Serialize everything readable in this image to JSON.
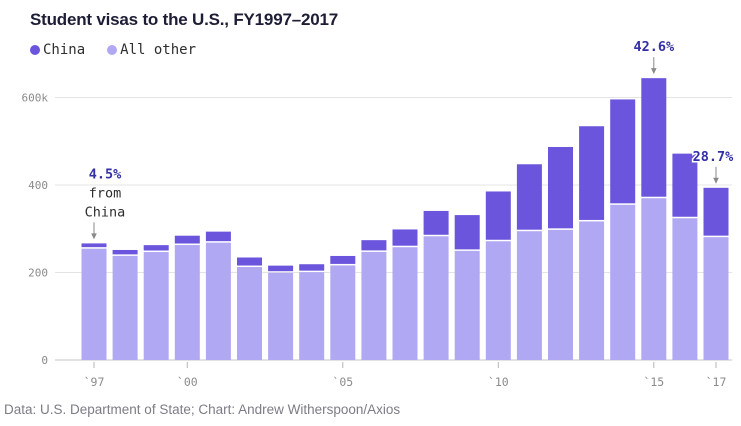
{
  "header": {
    "title": "Student visas to the U.S., FY1997–2017"
  },
  "legend": [
    {
      "label": "China",
      "color": "#6a55dc"
    },
    {
      "label": "All other",
      "color": "#b1a8f3"
    }
  ],
  "footer": {
    "source": "Data: U.S. Department of State; Chart: Andrew Witherspoon/Axios"
  },
  "chart_data": {
    "type": "bar",
    "stacked": true,
    "title": "Student visas to the U.S., FY1997–2017",
    "unit": "thousands of visas issued",
    "categories": [
      1997,
      1998,
      1999,
      2000,
      2001,
      2002,
      2003,
      2004,
      2005,
      2006,
      2007,
      2008,
      2009,
      2010,
      2011,
      2012,
      2013,
      2014,
      2015,
      2016,
      2017
    ],
    "series": [
      {
        "name": "China",
        "color": "#6a55dc",
        "values": [
          12,
          13.5,
          15.7,
          21.3,
          25.2,
          21.8,
          16.2,
          18.1,
          21.6,
          26.8,
          40.6,
          57.9,
          81.8,
          113.8,
          153,
          189.4,
          217.6,
          240.9,
          274.4,
          147.7,
          112.8
        ]
      },
      {
        "name": "All other",
        "color": "#b1a8f3",
        "values": [
          254.5,
          238,
          246.8,
          262.8,
          268.2,
          212.5,
          199.5,
          200.8,
          216.2,
          247.1,
          257.8,
          282.8,
          249.4,
          271.4,
          294.4,
          297.5,
          316.7,
          354.7,
          369.8,
          324,
          280.8
        ]
      }
    ],
    "y_axis": {
      "ticks": [
        0,
        200,
        400,
        600
      ],
      "tick_labels": [
        "0",
        "200",
        "400",
        "600k"
      ],
      "max": 690,
      "grid": true
    },
    "x_axis": {
      "tick_years": [
        1997,
        2000,
        2005,
        2010,
        2015,
        2017
      ],
      "tick_labels": [
        "`97",
        "`00",
        "`05",
        "`10",
        "`15",
        "`17"
      ]
    },
    "legend_position": "top-left",
    "annotations": [
      {
        "year": 1997,
        "lines": [
          {
            "text": "4.5%",
            "accent": true
          },
          {
            "text": "from",
            "accent": false
          },
          {
            "text": "China",
            "accent": false
          }
        ]
      },
      {
        "year": 2015,
        "lines": [
          {
            "text": "42.6%",
            "accent": true
          }
        ]
      },
      {
        "year": 2017,
        "lines": [
          {
            "text": "28.7%",
            "accent": true
          }
        ]
      }
    ],
    "colors": {
      "annotation_accent": "#332fa5",
      "annotation_dark": "#2e2e2e",
      "axis_text": "#8b8b8b",
      "arrow": "#8a8a8a"
    }
  }
}
